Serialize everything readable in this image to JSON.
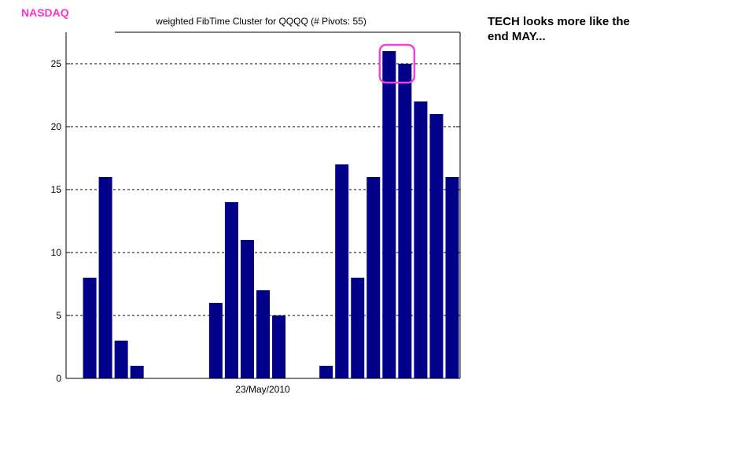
{
  "header": {
    "label": "NASDAQ",
    "label_color": "#ff33cc"
  },
  "annotation": {
    "lines": [
      "TECH looks more like the",
      "end MAY..."
    ]
  },
  "chart_data": {
    "type": "bar",
    "title": "weighted FibTime Cluster for QQQQ (# Pivots: 55)",
    "xlabel": "23/May/2010",
    "ylabel": "",
    "values": [
      0,
      8,
      16,
      3,
      1,
      0,
      0,
      0,
      0,
      6,
      14,
      11,
      7,
      5,
      0,
      0,
      1,
      17,
      8,
      16,
      26,
      25,
      22,
      21,
      16
    ],
    "ylim": [
      0,
      27.5
    ],
    "yticks": [
      0,
      5,
      10,
      15,
      20,
      25
    ],
    "grid": "horizontal dashed",
    "bar_color": "#000088",
    "highlight": {
      "bars": [
        20,
        21
      ],
      "color": "#ee44dd"
    }
  }
}
